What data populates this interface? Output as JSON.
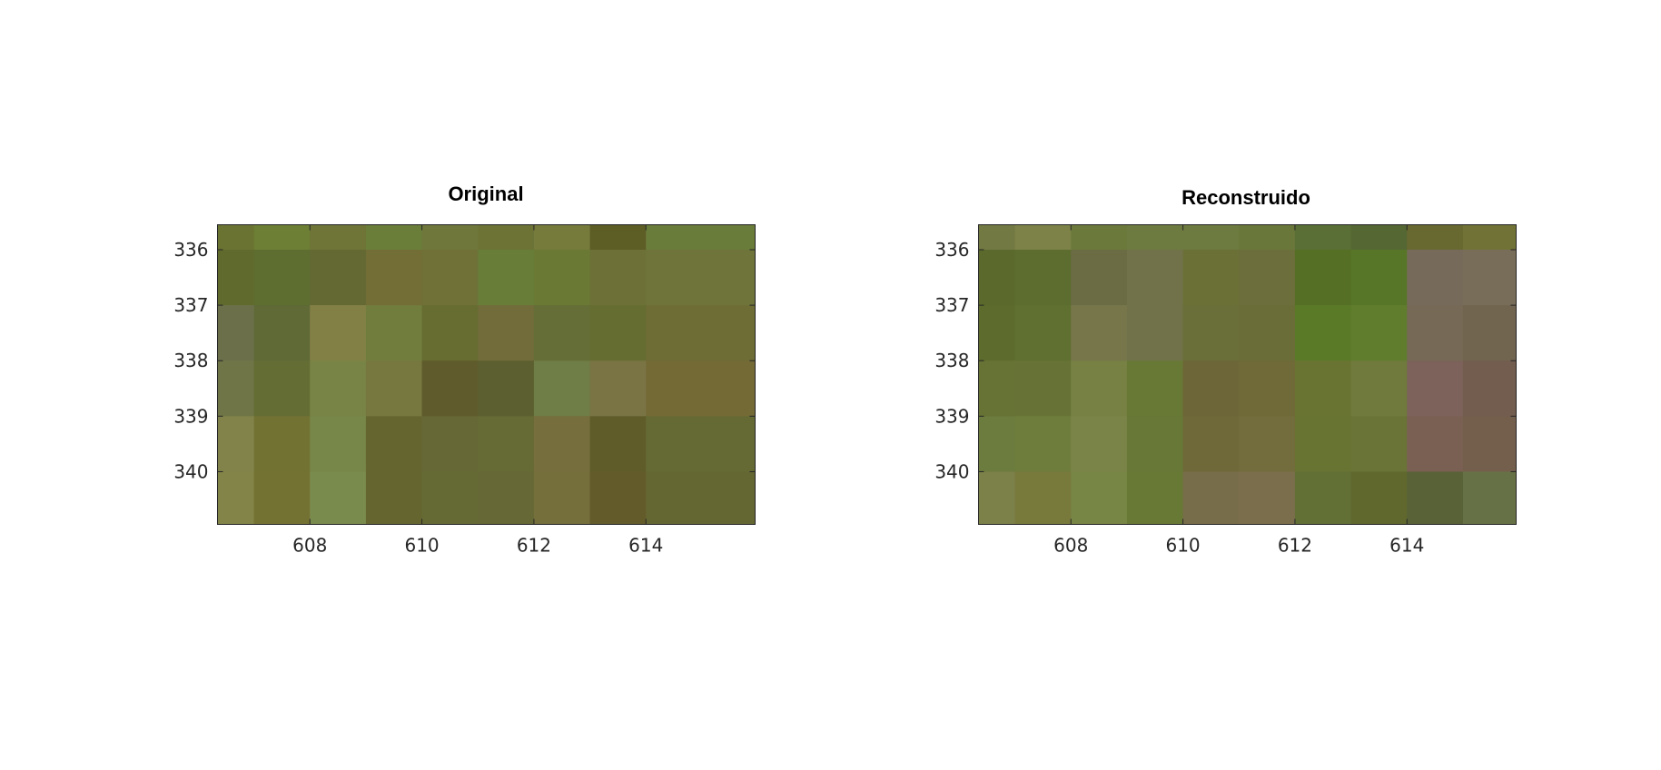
{
  "chart_data": [
    {
      "type": "heatmap",
      "title": "Original",
      "xlabel": "",
      "ylabel": "",
      "xlim": [
        606.35,
        615.95
      ],
      "ylim": [
        335.55,
        340.95
      ],
      "x_ticks": [
        608,
        610,
        612,
        614
      ],
      "y_ticks": [
        336,
        337,
        338,
        339,
        340
      ],
      "x_tick_labels": [
        "608",
        "610",
        "612",
        "614"
      ],
      "y_tick_labels": [
        "336",
        "337",
        "338",
        "339",
        "340"
      ],
      "grid": false,
      "x_edges": [
        606.35,
        607.0,
        608.0,
        609.0,
        610.0,
        611.0,
        612.0,
        613.0,
        614.0,
        615.95
      ],
      "y_edges": [
        335.55,
        336.0,
        337.0,
        338.0,
        339.0,
        340.0,
        340.95
      ],
      "cells": [
        [
          "#6b7332",
          "#6c7f34",
          "#6f7437",
          "#6a7e3a",
          "#6f773b",
          "#6c7335",
          "#767a3b",
          "#5d5d26",
          "#6a7c3a"
        ],
        [
          "#616a2d",
          "#5e6d30",
          "#646934",
          "#736e35",
          "#6f7136",
          "#677d38",
          "#6a7934",
          "#6d7137",
          "#6f743b"
        ],
        [
          "#6c704a",
          "#5f6a36",
          "#838046",
          "#717d3d",
          "#676d31",
          "#726c3b",
          "#656e37",
          "#656d31",
          "#6e6d35"
        ],
        [
          "#6f7546",
          "#646d34",
          "#788445",
          "#777840",
          "#605b2c",
          "#5c5f30",
          "#6f7d47",
          "#7a7445",
          "#746a36"
        ],
        [
          "#81834a",
          "#727333",
          "#778649",
          "#656530",
          "#666835",
          "#666a35",
          "#766e3d",
          "#605c2a",
          "#656a34"
        ],
        [
          "#838447",
          "#747232",
          "#7a8b4e",
          "#65662f",
          "#656a34",
          "#666935",
          "#756f3c",
          "#635c2a",
          "#656733"
        ]
      ]
    },
    {
      "type": "heatmap",
      "title": "Reconstruido",
      "xlabel": "",
      "ylabel": "",
      "xlim": [
        606.35,
        615.95
      ],
      "ylim": [
        335.55,
        340.95
      ],
      "x_ticks": [
        608,
        610,
        612,
        614
      ],
      "y_ticks": [
        336,
        337,
        338,
        339,
        340
      ],
      "x_tick_labels": [
        "608",
        "610",
        "612",
        "614"
      ],
      "y_tick_labels": [
        "336",
        "337",
        "338",
        "339",
        "340"
      ],
      "grid": false,
      "x_edges": [
        606.35,
        607.0,
        608.0,
        609.0,
        610.0,
        611.0,
        612.0,
        613.0,
        614.0,
        615.0,
        615.95
      ],
      "y_edges": [
        335.55,
        336.0,
        337.0,
        338.0,
        339.0,
        340.0,
        340.95
      ],
      "cells": [
        [
          "#737943",
          "#7d8248",
          "#6b7a3b",
          "#6d7a40",
          "#6d7a40",
          "#6a773a",
          "#596f36",
          "#556733",
          "#686831",
          "#717336"
        ],
        [
          "#5b6a2c",
          "#5c6d2f",
          "#6b6c44",
          "#72724a",
          "#6b7037",
          "#6c6e3b",
          "#557024",
          "#577627",
          "#766b5a",
          "#786d58"
        ],
        [
          "#5d6b2c",
          "#5f7030",
          "#77764b",
          "#717249",
          "#6a6e38",
          "#6b6d38",
          "#5a7a28",
          "#607d2d",
          "#766955",
          "#726550"
        ],
        [
          "#677335",
          "#677336",
          "#778144",
          "#677935",
          "#6d6638",
          "#706938",
          "#6a7432",
          "#6f7a3c",
          "#7c625a",
          "#735d4f"
        ],
        [
          "#6c7b3e",
          "#6e7d3c",
          "#7b8448",
          "#687937",
          "#6f6838",
          "#736c3c",
          "#677432",
          "#6a7436",
          "#7a6053",
          "#745f4d"
        ],
        [
          "#7c8049",
          "#787a3c",
          "#778545",
          "#687835",
          "#786d4a",
          "#7b6e4c",
          "#627035",
          "#60682e",
          "#596237",
          "#667245"
        ]
      ]
    }
  ]
}
